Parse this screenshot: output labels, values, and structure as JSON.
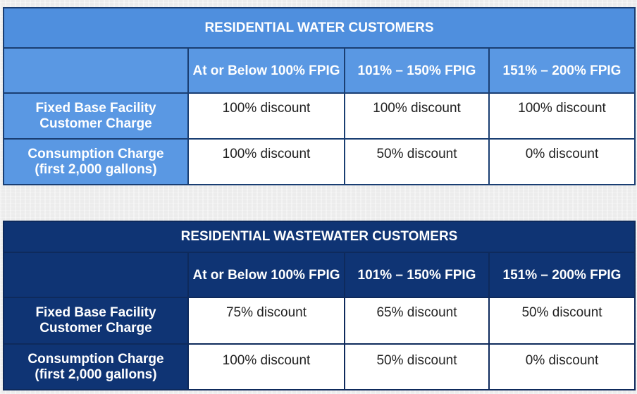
{
  "water": {
    "title": "RESIDENTIAL WATER CUSTOMERS",
    "columns": [
      "At or Below 100% FPIG",
      "101% – 150% FPIG",
      "151% – 200% FPIG"
    ],
    "rows": [
      {
        "label": "Fixed Base Facility Customer Charge",
        "label_lines": [
          "Fixed Base Facility",
          "Customer Charge"
        ],
        "values": [
          "100% discount",
          "100% discount",
          "100% discount"
        ]
      },
      {
        "label": "Consumption Charge (first 2,000 gallons)",
        "label_lines": [
          "Consumption Charge",
          "(first 2,000 gallons)"
        ],
        "values": [
          "100% discount",
          "50% discount",
          "0% discount"
        ]
      }
    ],
    "colors": {
      "header_bg": "#4f8fde",
      "border": "#1a3e72"
    }
  },
  "wastewater": {
    "title": "RESIDENTIAL WASTEWATER CUSTOMERS",
    "columns": [
      "At or Below 100% FPIG",
      "101% – 150% FPIG",
      "151% – 200% FPIG"
    ],
    "rows": [
      {
        "label": "Fixed Base Facility Customer Charge",
        "label_lines": [
          "Fixed Base Facility",
          "Customer Charge"
        ],
        "values": [
          "75% discount",
          "65% discount",
          "50% discount"
        ]
      },
      {
        "label": "Consumption Charge (first 2,000 gallons)",
        "label_lines": [
          "Consumption Charge",
          "(first 2,000 gallons)"
        ],
        "values": [
          "100% discount",
          "50% discount",
          "0% discount"
        ]
      }
    ],
    "colors": {
      "header_bg": "#0f3474",
      "border": "#0e2a5c"
    }
  }
}
